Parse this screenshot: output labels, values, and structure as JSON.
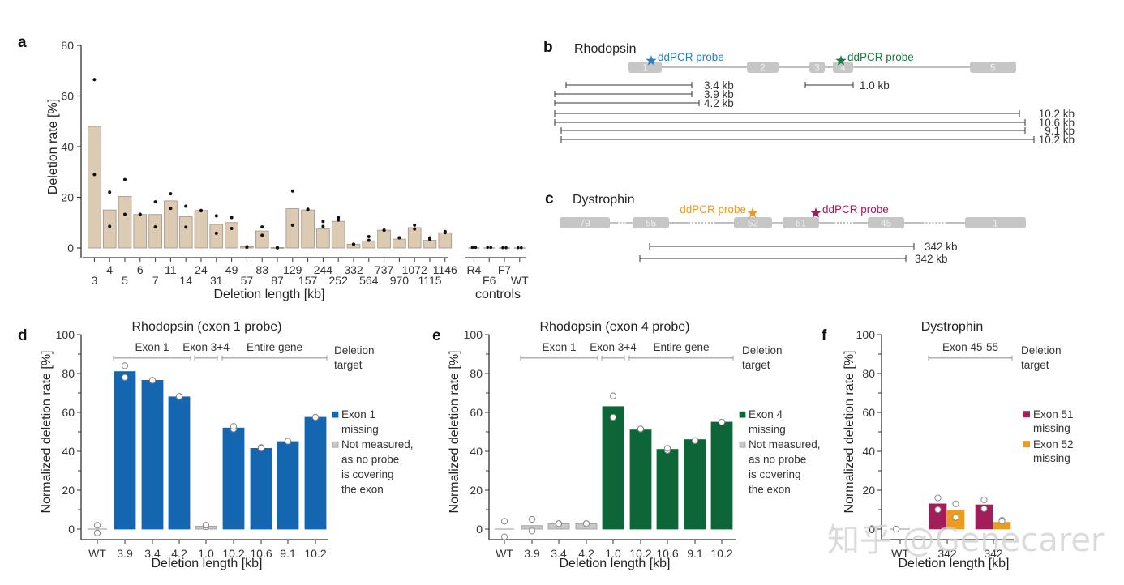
{
  "colors": {
    "tan_bar": "#dccbb2",
    "tan_edge": "#9d9286",
    "exon_grey": "#c6c6c6",
    "rhodopsin_blue": "#1566b0",
    "probe_blue": "#2c7fc1",
    "rhodopsin_green": "#0d6637",
    "probe_green": "#1c7a43",
    "not_measured_grey": "#c8c8c8",
    "exon51_magenta": "#a31d5b",
    "exon52_orange": "#ee9a1e",
    "axis": "#333333"
  },
  "watermark": "知乎 @Genecarer",
  "chart_data": [
    {
      "panel": "a",
      "type": "bar",
      "title": "",
      "xlabel": "Deletion length [kb]",
      "ylabel": "Deletion rate [%]",
      "ylim": [
        0,
        80
      ],
      "yticks": [
        0,
        20,
        40,
        60,
        80
      ],
      "categories": [
        "3",
        "4",
        "5",
        "6",
        "7",
        "11",
        "14",
        "24",
        "31",
        "49",
        "57",
        "83",
        "87",
        "129",
        "157",
        "244",
        "252",
        "332",
        "564",
        "737",
        "970",
        "1072",
        "1115",
        "1146"
      ],
      "values": [
        48,
        15,
        20.3,
        13.2,
        13.2,
        18.6,
        12.3,
        14.8,
        9.3,
        10,
        0.5,
        6.7,
        0.2,
        15.5,
        15,
        7.5,
        10.5,
        1.5,
        2.8,
        7,
        3.5,
        8,
        3,
        6
      ],
      "replicates": [
        [
          66.5,
          29
        ],
        [
          22,
          8.5
        ],
        [
          27,
          13.3
        ],
        [
          13.2,
          13.3
        ],
        [
          18.2,
          8.3
        ],
        [
          21.4,
          15.6
        ],
        [
          16.5,
          8.2
        ],
        [
          14.7,
          14.8
        ],
        [
          12.7,
          5.8
        ],
        [
          12,
          7.7
        ],
        [
          0.3,
          0.5
        ],
        [
          8.3,
          5
        ],
        [
          0.1,
          0.1
        ],
        [
          22.5,
          9
        ],
        [
          15.3,
          15
        ],
        [
          10.5,
          8.5
        ],
        [
          12,
          11
        ],
        [
          1.5,
          1.5
        ],
        [
          4.5,
          3
        ],
        [
          7,
          7
        ],
        [
          4,
          4
        ],
        [
          9,
          7.5
        ],
        [
          3.5,
          4
        ],
        [
          6.5,
          6
        ]
      ],
      "controls": {
        "label": "controls",
        "categories": [
          "R4",
          "F6",
          "F7",
          "WT"
        ],
        "replicates": [
          [
            0.2,
            0.2
          ],
          [
            0.2,
            0.2
          ],
          [
            0.1,
            0.1
          ],
          [
            0.1,
            0.1
          ]
        ]
      }
    },
    {
      "panel": "d",
      "type": "bar",
      "title": "Rhodopsin (exon 1 probe)",
      "xlabel": "Deletion length [kb]",
      "ylabel": "Normalized deletion rate [%]",
      "ylim": [
        0,
        100
      ],
      "yticks": [
        0,
        20,
        40,
        60,
        80,
        100
      ],
      "categories": [
        "WT",
        "3.9",
        "3.4",
        "4.2",
        "1.0",
        "10.2",
        "10.6",
        "9.1",
        "10.2"
      ],
      "values": [
        0,
        81,
        76.5,
        68,
        1.5,
        52,
        41.5,
        45,
        57.5
      ],
      "kind": [
        "wt",
        "measured",
        "measured",
        "measured",
        "not_measured",
        "measured",
        "measured",
        "measured",
        "measured"
      ],
      "replicates": [
        [
          2,
          -2
        ],
        [
          84,
          78
        ],
        [
          76.5,
          76.5
        ],
        [
          68.2,
          68.2
        ],
        [
          1.2,
          2
        ],
        [
          51.5,
          52.8
        ],
        [
          42,
          41.6
        ],
        [
          45.2,
          45.2
        ],
        [
          57.5,
          57.5
        ]
      ],
      "groups": [
        {
          "label": "Exon 1",
          "from": 1,
          "to": 3
        },
        {
          "label": "Exon 3+4",
          "from": 4,
          "to": 4
        },
        {
          "label": "Entire gene",
          "from": 5,
          "to": 8
        }
      ],
      "group_caption": [
        "Deletion",
        "target"
      ],
      "legend": [
        {
          "key": "measured",
          "lines": [
            "Exon 1",
            "missing"
          ]
        },
        {
          "key": "not_measured",
          "lines": [
            "Not measured,",
            "as no probe",
            "is covering",
            "the exon"
          ]
        }
      ]
    },
    {
      "panel": "e",
      "type": "bar",
      "title": "Rhodopsin (exon 4 probe)",
      "xlabel": "Deletion length [kb]",
      "ylabel": "Normalized deletion rate [%]",
      "ylim": [
        0,
        100
      ],
      "yticks": [
        0,
        20,
        40,
        60,
        80,
        100
      ],
      "categories": [
        "WT",
        "3.9",
        "3.4",
        "4.2",
        "1.0",
        "10.2",
        "10.6",
        "9.1",
        "10.2"
      ],
      "values": [
        0,
        1.8,
        2.8,
        2.8,
        63,
        51,
        41,
        46,
        55
      ],
      "kind": [
        "wt",
        "not_measured",
        "not_measured",
        "not_measured",
        "measured",
        "measured",
        "measured",
        "measured",
        "measured"
      ],
      "replicates": [
        [
          4,
          -4
        ],
        [
          5,
          -1
        ],
        [
          2.8,
          2.8
        ],
        [
          2.8,
          2.8
        ],
        [
          68.5,
          57.5
        ],
        [
          51.5,
          51.5
        ],
        [
          40.5,
          41.5
        ],
        [
          45.5,
          45.5
        ],
        [
          55,
          55
        ]
      ],
      "groups": [
        {
          "label": "Exon 1",
          "from": 1,
          "to": 3
        },
        {
          "label": "Exon 3+4",
          "from": 4,
          "to": 4
        },
        {
          "label": "Entire gene",
          "from": 5,
          "to": 8
        }
      ],
      "group_caption": [
        "Deletion",
        "target"
      ],
      "legend": [
        {
          "key": "measured",
          "lines": [
            "Exon 4",
            "missing"
          ]
        },
        {
          "key": "not_measured",
          "lines": [
            "Not measured,",
            "as no probe",
            "is covering",
            "the exon"
          ]
        }
      ]
    },
    {
      "panel": "f",
      "type": "bar",
      "title": "Dystrophin",
      "xlabel": "Deletion length [kb]",
      "ylabel": "Normalized deletion rate [%]",
      "ylim": [
        0,
        100
      ],
      "yticks": [
        0,
        20,
        40,
        60,
        80,
        100
      ],
      "categories": [
        "WT",
        "342",
        "342"
      ],
      "series": [
        {
          "name": "Exon 51 missing",
          "key": "exon51",
          "values": [
            0,
            13,
            12.5
          ],
          "replicates": [
            [
              0,
              0
            ],
            [
              16,
              10
            ],
            [
              15,
              10.5
            ]
          ]
        },
        {
          "name": "Exon 52 missing",
          "key": "exon52",
          "values": [
            0,
            9.5,
            3.5
          ],
          "replicates": [
            [
              0,
              0
            ],
            [
              13,
              6
            ],
            [
              4.5,
              4
            ]
          ]
        }
      ],
      "groups": [
        {
          "label": "Exon 45-55",
          "from": 1,
          "to": 2
        }
      ],
      "group_caption": [
        "Deletion",
        "target"
      ],
      "legend": [
        {
          "key": "exon51",
          "lines": [
            "Exon 51",
            "missing"
          ]
        },
        {
          "key": "exon52",
          "lines": [
            "Exon 52",
            "missing"
          ]
        }
      ]
    }
  ],
  "diagram_b": {
    "panel": "b",
    "gene": "Rhodopsin",
    "exons": [
      "1",
      "2",
      "3",
      "4",
      "5"
    ],
    "probes": [
      {
        "label": "ddPCR probe",
        "exon": "1",
        "color": "#2c7fc1"
      },
      {
        "label": "ddPCR probe",
        "exon": "4",
        "color": "#1c7a43"
      }
    ],
    "deletions": [
      "3.4 kb",
      "3.9 kb",
      "4.2 kb",
      "1.0 kb",
      "10.2 kb",
      "10.6 kb",
      "9.1 kb",
      "10.2 kb"
    ]
  },
  "diagram_c": {
    "panel": "c",
    "gene": "Dystrophin",
    "exons": [
      "79",
      "55",
      "52",
      "51",
      "45",
      "1"
    ],
    "probes": [
      {
        "label": "ddPCR probe",
        "exon": "52",
        "color": "#ee9a1e"
      },
      {
        "label": "ddPCR probe",
        "exon": "51",
        "color": "#a31d5b"
      }
    ],
    "deletions": [
      "342 kb",
      "342 kb"
    ]
  }
}
